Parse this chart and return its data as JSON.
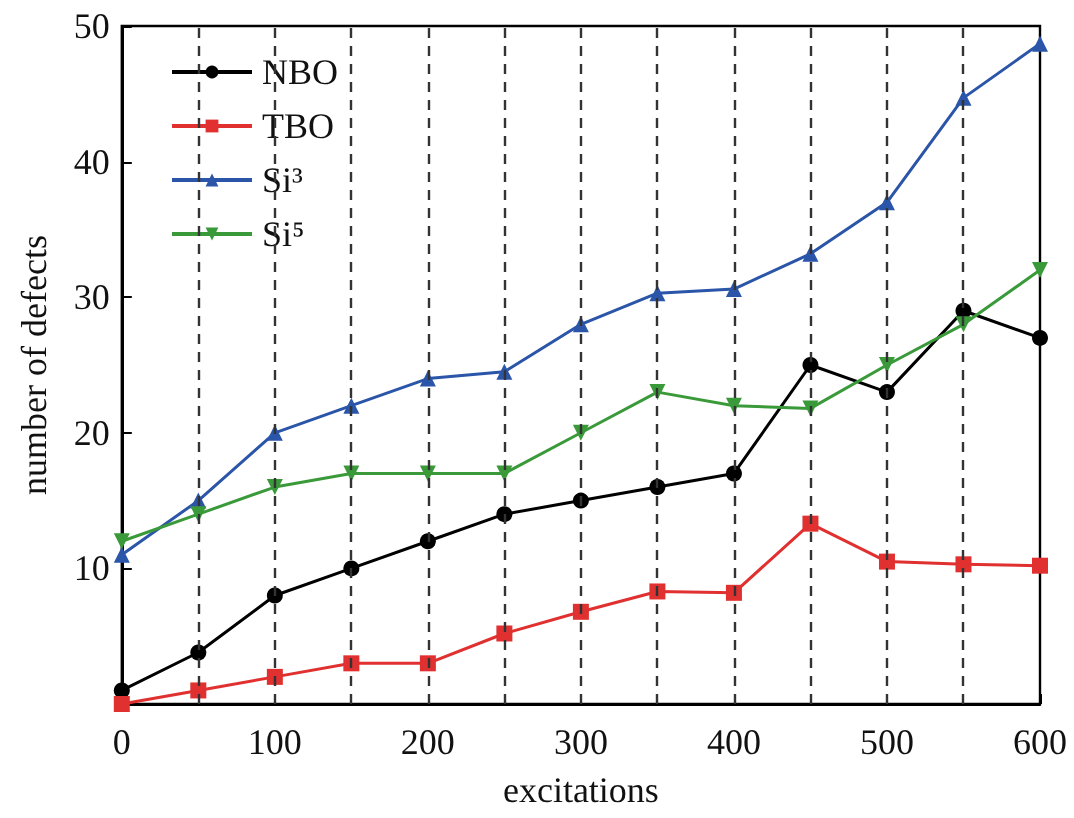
{
  "chart_data": {
    "type": "line",
    "xlabel": "excitations",
    "ylabel": "number of defects",
    "xlim": [
      0,
      600
    ],
    "xticks": [
      0,
      100,
      200,
      300,
      400,
      500,
      600
    ],
    "ylim": [
      0,
      50
    ],
    "yticks": [
      {
        "value": 0,
        "label": null
      },
      10,
      20,
      30,
      40,
      50
    ],
    "grid": false,
    "legend": "top left",
    "line_style": "solid",
    "x": [
      0,
      50,
      100,
      150,
      200,
      250,
      300,
      350,
      400,
      450,
      500,
      550,
      600
    ],
    "series": [
      {
        "name": "NBO",
        "color": "#000000",
        "marker": "circle",
        "values": [
          1,
          3.8,
          8,
          10,
          12,
          14,
          15,
          16,
          17,
          25,
          23,
          29,
          27
        ]
      },
      {
        "name": "TBO",
        "color": "#e03030",
        "marker": "square",
        "values": [
          0,
          1,
          2,
          3,
          3,
          5.2,
          6.8,
          8.3,
          8.2,
          13.3,
          10.5,
          10.3,
          10.2
        ]
      },
      {
        "name": "Si³",
        "color": "#2a55a8",
        "marker": "triangle",
        "values": [
          11,
          15,
          20,
          22,
          24,
          24.5,
          28,
          30.3,
          30.6,
          33.2,
          37,
          44.7,
          48.7
        ]
      },
      {
        "name": "Si⁵",
        "color": "#3a9a3a",
        "marker": "triangle-down",
        "values": [
          12,
          14,
          16,
          17,
          17,
          17,
          20,
          23,
          22,
          21.8,
          25,
          28,
          32
        ]
      }
    ],
    "ref_lines": [
      {
        "axis": "x",
        "value": 50,
        "color": "#333333",
        "line_style": "dashed"
      },
      {
        "axis": "x",
        "value": 100,
        "color": "#333333",
        "line_style": "dashed"
      },
      {
        "axis": "x",
        "value": 150,
        "color": "#333333",
        "line_style": "dashed"
      },
      {
        "axis": "x",
        "value": 200,
        "color": "#333333",
        "line_style": "dashed"
      },
      {
        "axis": "x",
        "value": 250,
        "color": "#333333",
        "line_style": "dashed"
      },
      {
        "axis": "x",
        "value": 300,
        "color": "#333333",
        "line_style": "dashed"
      },
      {
        "axis": "x",
        "value": 350,
        "color": "#333333",
        "line_style": "dashed"
      },
      {
        "axis": "x",
        "value": 400,
        "color": "#333333",
        "line_style": "dashed"
      },
      {
        "axis": "x",
        "value": 450,
        "color": "#333333",
        "line_style": "dashed"
      },
      {
        "axis": "x",
        "value": 500,
        "color": "#333333",
        "line_style": "dashed"
      },
      {
        "axis": "x",
        "value": 550,
        "color": "#333333",
        "line_style": "dashed"
      }
    ]
  }
}
